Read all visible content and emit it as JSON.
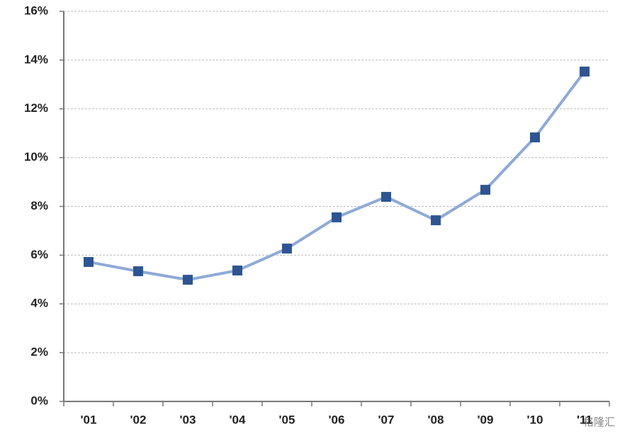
{
  "chart_data": {
    "type": "line",
    "categories": [
      "'01",
      "'02",
      "'03",
      "'04",
      "'05",
      "'06",
      "'07",
      "'08",
      "'09",
      "'10",
      "'11"
    ],
    "series": [
      {
        "color": "#8eaad6",
        "marker_color": "#2e5591",
        "values": [
          5.72,
          5.34,
          4.99,
          5.37,
          6.27,
          7.55,
          8.39,
          7.43,
          8.68,
          10.83,
          13.53
        ]
      }
    ],
    "ylim": [
      0,
      16
    ],
    "yticks": [
      {
        "value": 0,
        "label": "0%"
      },
      {
        "value": 2,
        "label": "2%"
      },
      {
        "value": 4,
        "label": "4%"
      },
      {
        "value": 6,
        "label": "6%"
      },
      {
        "value": 8,
        "label": "8%"
      },
      {
        "value": 10,
        "label": "10%"
      },
      {
        "value": 12,
        "label": "12%"
      },
      {
        "value": 14,
        "label": "14%"
      },
      {
        "value": 16,
        "label": "16%"
      }
    ],
    "grid": true,
    "watermark": "格隆汇"
  }
}
